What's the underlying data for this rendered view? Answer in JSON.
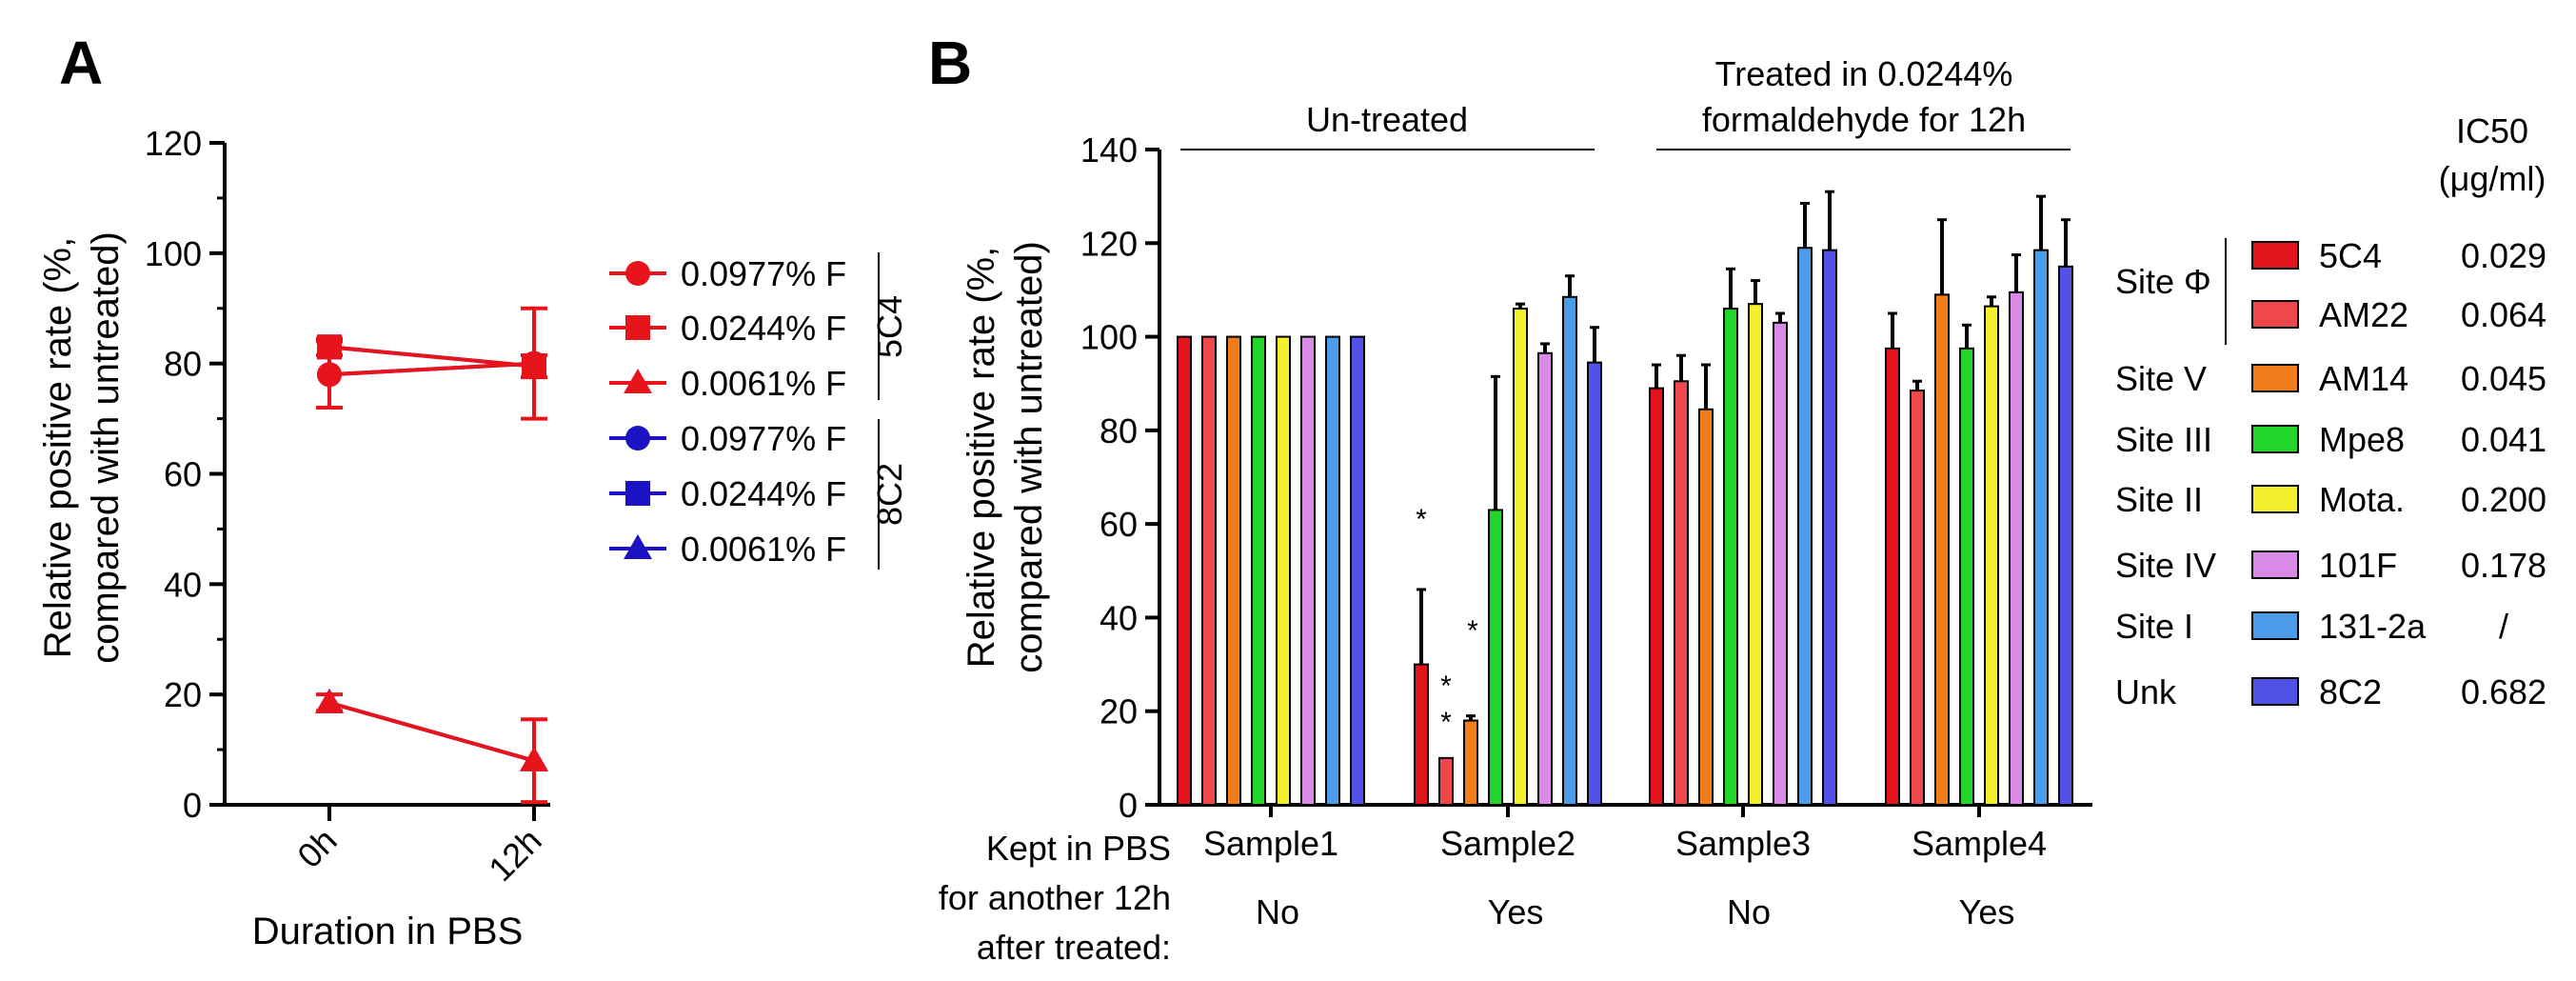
{
  "panel_a": {
    "letter": "A",
    "ylabel_line1": "Relative positive rate (%,",
    "ylabel_line2": "compared with untreated)",
    "xlabel": "Duration in PBS",
    "legend_items": [
      "0.0977% F",
      "0.0244% F",
      "0.0061% F",
      "0.0977% F",
      "0.0244% F",
      "0.0061% F"
    ],
    "group_labels": [
      "5C4",
      "8C2"
    ]
  },
  "panel_b": {
    "letter": "B",
    "ylabel_line1": "Relative positive rate (%,",
    "ylabel_line2": "compared with untreated)",
    "bracket1_label": "Un-treated",
    "bracket2_line1": "Treated in 0.0244%",
    "bracket2_line2": "formaldehyde for 12h",
    "row_label_lines": [
      "Kept in PBS",
      "for another 12h",
      "after treated:"
    ],
    "row_values": [
      "No",
      "Yes",
      "No",
      "Yes"
    ],
    "significance_mark": "*",
    "legend_header_line1": "IC50",
    "legend_header_line2": "(μg/ml)",
    "legend": [
      {
        "site": "Site Φ",
        "antibody": "5C4",
        "ic50": "0.029"
      },
      {
        "site": "",
        "antibody": "AM22",
        "ic50": "0.064"
      },
      {
        "site": "Site V",
        "antibody": "AM14",
        "ic50": "0.045"
      },
      {
        "site": "Site III",
        "antibody": "Mpe8",
        "ic50": "0.041"
      },
      {
        "site": "Site II",
        "antibody": "Mota.",
        "ic50": "0.200"
      },
      {
        "site": "Site IV",
        "antibody": "101F",
        "ic50": "0.178"
      },
      {
        "site": "Site I",
        "antibody": "131-2a",
        "ic50": "/"
      },
      {
        "site": "Unk",
        "antibody": "8C2",
        "ic50": "0.682"
      }
    ]
  },
  "chart_data": [
    {
      "type": "line",
      "panel": "A",
      "title": "",
      "xlabel": "Duration in PBS",
      "ylabel": "Relative positive rate (%, compared with untreated)",
      "categories": [
        "0h",
        "12h"
      ],
      "ylim": [
        0,
        120
      ],
      "yticks": [
        0,
        20,
        40,
        60,
        80,
        100,
        120
      ],
      "series": [
        {
          "name": "0.0977% F",
          "group": "5C4",
          "color": "#e8141b",
          "marker": "circle",
          "values": [
            78,
            80
          ],
          "errors": [
            6,
            10
          ]
        },
        {
          "name": "0.0244% F",
          "group": "5C4",
          "color": "#e8141b",
          "marker": "square",
          "values": [
            83,
            79.5
          ],
          "errors": [
            1.5,
            2
          ]
        },
        {
          "name": "0.0061% F",
          "group": "5C4",
          "color": "#e8141b",
          "marker": "triangle",
          "values": [
            18.5,
            8
          ],
          "errors": [
            1.5,
            7.5
          ]
        },
        {
          "name": "0.0977% F",
          "group": "8C2",
          "color": "#1b12c4",
          "marker": "circle",
          "values": [
            78,
            80
          ],
          "errors": [
            0,
            0
          ]
        },
        {
          "name": "0.0244% F",
          "group": "8C2",
          "color": "#1b12c4",
          "marker": "square",
          "values": [
            83,
            79.5
          ],
          "errors": [
            0,
            0
          ]
        },
        {
          "name": "0.0061% F",
          "group": "8C2",
          "color": "#1b12c4",
          "marker": "triangle",
          "values": [
            18.5,
            8
          ],
          "errors": [
            0,
            0
          ]
        }
      ]
    },
    {
      "type": "bar",
      "panel": "B",
      "title": "",
      "xlabel": "",
      "ylabel": "Relative positive rate (%, compared with untreated)",
      "categories": [
        "Sample1",
        "Sample2",
        "Sample3",
        "Sample4"
      ],
      "ylim": [
        0,
        140
      ],
      "yticks": [
        0,
        20,
        40,
        60,
        80,
        100,
        120,
        140
      ],
      "series": [
        {
          "name": "5C4",
          "color": "#e3141b",
          "values": [
            100,
            30,
            89,
            97.5
          ],
          "errors": [
            0,
            16,
            5,
            7.5
          ]
        },
        {
          "name": "AM22",
          "color": "#ef474c",
          "values": [
            100,
            10,
            90.5,
            88.5
          ],
          "errors": [
            0,
            0,
            5.5,
            2
          ]
        },
        {
          "name": "AM14",
          "color": "#f07d1a",
          "values": [
            100,
            18,
            84.5,
            109
          ],
          "errors": [
            0,
            1,
            9.5,
            16
          ]
        },
        {
          "name": "Mpe8",
          "color": "#21d628",
          "values": [
            100,
            63,
            106,
            97.5
          ],
          "errors": [
            0,
            28.5,
            8.5,
            5
          ]
        },
        {
          "name": "Mota.",
          "color": "#f4f02e",
          "values": [
            100,
            106,
            107,
            106.5
          ],
          "errors": [
            0,
            1,
            5,
            2
          ]
        },
        {
          "name": "101F",
          "color": "#d98ae6",
          "values": [
            100,
            96.5,
            103,
            109.5
          ],
          "errors": [
            0,
            2,
            2,
            8
          ]
        },
        {
          "name": "131-2a",
          "color": "#4c9be8",
          "values": [
            100,
            108.5,
            119,
            118.5
          ],
          "errors": [
            0,
            4.5,
            9.5,
            11.5
          ]
        },
        {
          "name": "8C2",
          "color": "#5252e6",
          "values": [
            100,
            94.5,
            118.5,
            115
          ],
          "errors": [
            0,
            7.5,
            12.5,
            10
          ]
        }
      ],
      "significance": [
        {
          "category": "Sample2",
          "series": "5C4",
          "mark": "*"
        },
        {
          "category": "Sample2",
          "series": "AM22",
          "mark": "*"
        },
        {
          "category": "Sample2",
          "series": "AM14",
          "mark": "*"
        },
        {
          "category": "Sample2",
          "series": "Mpe8",
          "mark": "*"
        }
      ]
    }
  ]
}
